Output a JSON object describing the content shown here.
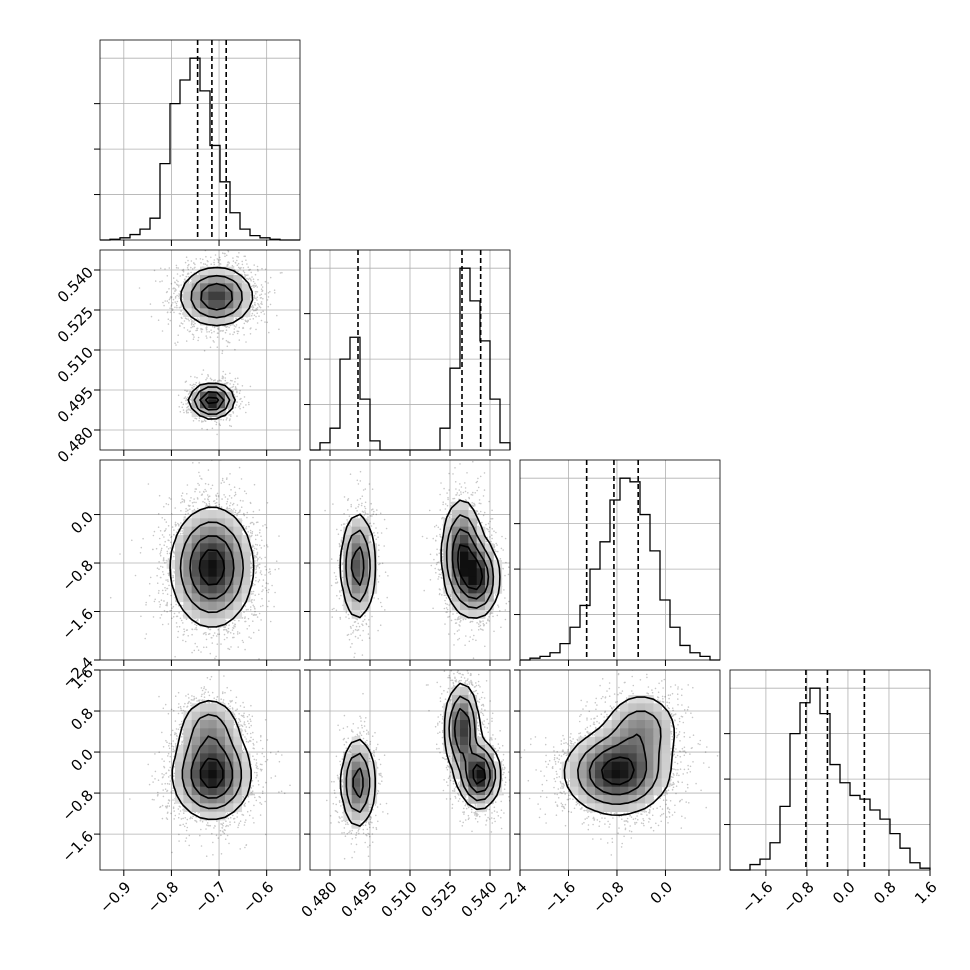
{
  "chart_data": {
    "type": "corner",
    "grid": true,
    "params": [
      {
        "range": [
          -0.95,
          -0.53
        ],
        "ticks": [
          "-0.9",
          "-0.8",
          "-0.7",
          "-0.6"
        ],
        "tick_values": [
          -0.9,
          -0.8,
          -0.7,
          -0.6
        ],
        "quantiles": [
          -0.745,
          -0.715,
          -0.685
        ]
      },
      {
        "range": [
          0.4725,
          0.5475
        ],
        "ticks": [
          "0.480",
          "0.495",
          "0.510",
          "0.525",
          "0.540"
        ],
        "tick_values": [
          0.48,
          0.495,
          0.51,
          0.525,
          0.54
        ],
        "quantiles": [
          0.4905,
          0.5295,
          0.5365
        ]
      },
      {
        "range": [
          -2.4,
          0.9
        ],
        "ticks": [
          "-2.4",
          "-1.6",
          "-0.8",
          "0.0"
        ],
        "tick_values": [
          -2.4,
          -1.6,
          -0.8,
          0.0
        ],
        "quantiles": [
          -1.3,
          -0.85,
          -0.45
        ]
      },
      {
        "range": [
          -2.3,
          1.6
        ],
        "ticks": [
          "-1.6",
          "-0.8",
          "0.0",
          "0.8",
          "1.6"
        ],
        "tick_values": [
          -1.6,
          -0.8,
          0.0,
          0.8,
          1.6
        ],
        "quantiles": [
          -0.82,
          -0.4,
          0.32
        ]
      }
    ],
    "diag_hist": [
      [
        0,
        0.004,
        0.012,
        0.03,
        0.06,
        0.12,
        0.42,
        0.75,
        0.88,
        1.0,
        0.82,
        0.52,
        0.32,
        0.15,
        0.06,
        0.024,
        0.012,
        0.004,
        0,
        0
      ],
      [
        0,
        0.04,
        0.12,
        0.5,
        0.62,
        0.28,
        0.05,
        0,
        0,
        0,
        0,
        0,
        0,
        0.12,
        0.45,
        1.0,
        0.82,
        0.6,
        0.28,
        0.04
      ],
      [
        0,
        0.01,
        0.02,
        0.04,
        0.09,
        0.18,
        0.3,
        0.5,
        0.65,
        0.88,
        1.0,
        0.98,
        0.8,
        0.6,
        0.33,
        0.18,
        0.08,
        0.04,
        0.02,
        0
      ],
      [
        0,
        0,
        0.03,
        0.06,
        0.15,
        0.35,
        0.75,
        0.92,
        1.0,
        0.86,
        0.58,
        0.48,
        0.41,
        0.39,
        0.33,
        0.28,
        0.2,
        0.12,
        0.04,
        0.01
      ]
    ],
    "pairs": [
      {
        "x": 0,
        "y": 1,
        "clusters": [
          {
            "mx": -0.705,
            "my": 0.53,
            "sx": 0.038,
            "sy": 0.0055,
            "w": 0.7
          },
          {
            "mx": -0.715,
            "my": 0.491,
            "sx": 0.023,
            "sy": 0.0032,
            "w": 0.3
          }
        ]
      },
      {
        "x": 0,
        "y": 2,
        "clusters": [
          {
            "mx": -0.715,
            "my": -0.87,
            "sx": 0.042,
            "sy": 0.48,
            "w": 1.0
          }
        ]
      },
      {
        "x": 1,
        "y": 2,
        "clusters": [
          {
            "mx": 0.4905,
            "my": -0.85,
            "sx": 0.0033,
            "sy": 0.45,
            "w": 0.3
          },
          {
            "mx": 0.5295,
            "my": -0.65,
            "sx": 0.0038,
            "sy": 0.45,
            "w": 0.4
          },
          {
            "mx": 0.5355,
            "my": -1.05,
            "sx": 0.004,
            "sy": 0.32,
            "w": 0.3
          }
        ]
      },
      {
        "x": 0,
        "y": 3,
        "clusters": [
          {
            "mx": -0.715,
            "my": -0.45,
            "sx": 0.04,
            "sy": 0.42,
            "w": 0.78
          },
          {
            "mx": -0.72,
            "my": 0.45,
            "sx": 0.034,
            "sy": 0.35,
            "w": 0.22
          }
        ]
      },
      {
        "x": 1,
        "y": 3,
        "clusters": [
          {
            "mx": 0.4905,
            "my": -0.6,
            "sx": 0.0033,
            "sy": 0.45,
            "w": 0.3
          },
          {
            "mx": 0.5295,
            "my": 0.45,
            "sx": 0.0032,
            "sy": 0.45,
            "w": 0.35
          },
          {
            "mx": 0.536,
            "my": -0.45,
            "sx": 0.0038,
            "sy": 0.32,
            "w": 0.35
          }
        ]
      },
      {
        "x": 2,
        "y": 3,
        "clusters": [
          {
            "mx": -0.8,
            "my": -0.4,
            "sx": 0.42,
            "sy": 0.4,
            "w": 0.75
          },
          {
            "mx": -0.4,
            "my": 0.45,
            "sx": 0.32,
            "sy": 0.38,
            "w": 0.25
          }
        ]
      }
    ]
  }
}
